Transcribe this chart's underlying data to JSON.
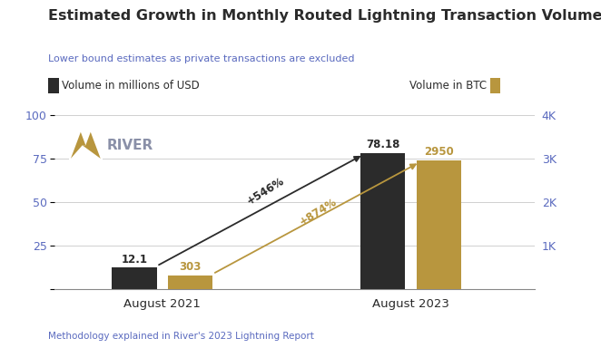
{
  "title": "Estimated Growth in Monthly Routed Lightning Transaction Volume",
  "subtitle": "Lower bound estimates as private transactions are excluded",
  "subtitle_color": "#5a6abf",
  "footer": "Methodology explained in River's 2023 Lightning Report",
  "footer_color": "#5a6abf",
  "legend_usd_label": "Volume in millions of USD",
  "legend_btc_label": "Volume in BTC",
  "bar_color_usd": "#2b2b2b",
  "bar_color_btc": "#b8963e",
  "categories": [
    "August 2021",
    "August 2023"
  ],
  "usd_values": [
    12.1,
    78.18
  ],
  "btc_values": [
    303,
    2950
  ],
  "ylim_left": [
    0,
    100
  ],
  "ylim_right": [
    0,
    4000
  ],
  "ytick_labels_left": [
    "",
    "25",
    "50",
    "75",
    "100"
  ],
  "ytick_labels_right": [
    "",
    "1K",
    "2K",
    "3K",
    "4K"
  ],
  "usd_annotation_2021": "12.1",
  "usd_annotation_2023": "78.18",
  "btc_annotation_2021": "303",
  "btc_annotation_2023": "2950",
  "growth_usd_label": "+546%",
  "growth_btc_label": "+874%",
  "bg_color": "#ffffff",
  "text_color": "#2b2b2b",
  "tick_color": "#5a6abf",
  "grid_color": "#d0d0d0",
  "river_logo_color": "#b8963e",
  "river_text_color": "#8a90a8"
}
